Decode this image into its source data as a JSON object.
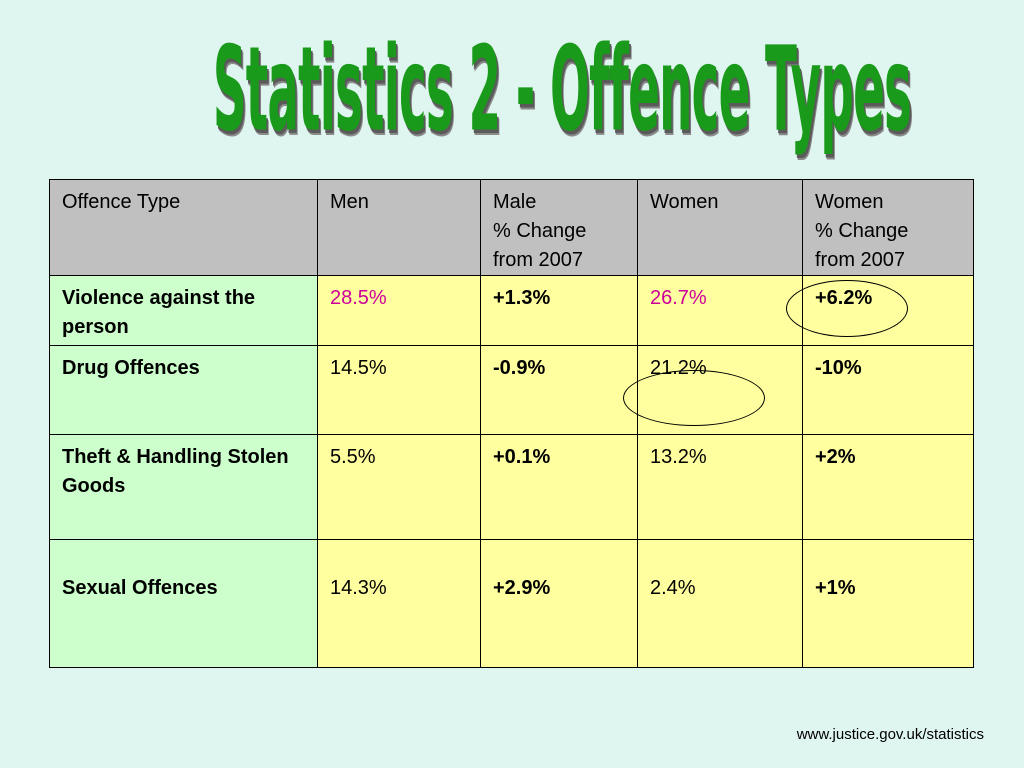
{
  "title": "Statistics 2 - Offence Types",
  "table": {
    "headers": [
      "Offence Type",
      "Men",
      "Male\n% Change\nfrom 2007",
      "Women",
      "Women\n% Change\nfrom 2007"
    ],
    "rows": [
      {
        "offence": "Violence against the person",
        "men": "28.5%",
        "male_change": "+1.3%",
        "women": "26.7%",
        "women_change": "+6.2%"
      },
      {
        "offence": "Drug Offences",
        "men": "14.5%",
        "male_change": "-0.9%",
        "women": "21.2%",
        "women_change": "-10%"
      },
      {
        "offence": "Theft & Handling Stolen Goods",
        "men": "5.5%",
        "male_change": "+0.1%",
        "women": "13.2%",
        "women_change": "+2%"
      },
      {
        "offence": "Sexual Offences",
        "men": "14.3%",
        "male_change": "+2.9%",
        "women": "2.4%",
        "women_change": "+1%"
      }
    ]
  },
  "source": "www.justice.gov.uk/statistics",
  "colors": {
    "background": "#dff5ef",
    "title": "#1a9a1a",
    "header_bg": "#c0c0c0",
    "offence_col_bg": "#ccffcc",
    "cell_bg": "#ffffa0",
    "highlight_text": "#cc0099"
  }
}
